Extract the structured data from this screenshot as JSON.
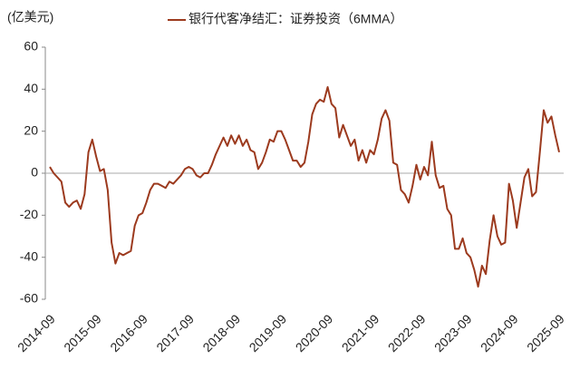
{
  "chart_data": {
    "type": "line",
    "y_label": "(亿美元)",
    "categories": [
      "2014-09",
      null,
      null,
      null,
      null,
      null,
      null,
      null,
      null,
      null,
      null,
      null,
      "2015-09",
      null,
      null,
      null,
      null,
      null,
      null,
      null,
      null,
      null,
      null,
      null,
      "2016-09",
      null,
      null,
      null,
      null,
      null,
      null,
      null,
      null,
      null,
      null,
      null,
      "2017-09",
      null,
      null,
      null,
      null,
      null,
      null,
      null,
      null,
      null,
      null,
      null,
      "2018-09",
      null,
      null,
      null,
      null,
      null,
      null,
      null,
      null,
      null,
      null,
      null,
      "2019-09",
      null,
      null,
      null,
      null,
      null,
      null,
      null,
      null,
      null,
      null,
      null,
      "2020-09",
      null,
      null,
      null,
      null,
      null,
      null,
      null,
      null,
      null,
      null,
      null,
      "2021-09",
      null,
      null,
      null,
      null,
      null,
      null,
      null,
      null,
      null,
      null,
      null,
      "2022-09",
      null,
      null,
      null,
      null,
      null,
      null,
      null,
      null,
      null,
      null,
      null,
      "2023-09",
      null,
      null,
      null,
      null,
      null,
      null,
      null,
      null,
      null,
      null,
      null,
      "2024-09",
      null,
      null,
      null,
      null,
      null,
      null,
      null,
      null,
      null,
      null,
      null,
      "2025-09"
    ],
    "series": [
      {
        "name": "银行代客净结汇：证券投资（6MMA）",
        "color": "#9c3a1e",
        "values": [
          3,
          0,
          -2,
          -4,
          -14,
          -16,
          -14,
          -13,
          -17,
          -10,
          10,
          16,
          8,
          1,
          2,
          -8,
          -33,
          -43,
          -38,
          -39,
          -38,
          -37,
          -25,
          -20,
          -19,
          -14,
          -8,
          -5,
          -5,
          -6,
          -7,
          -4,
          -5,
          -3,
          -1,
          2,
          3,
          2,
          -1,
          -2,
          0,
          0,
          4,
          9,
          13,
          17,
          13,
          18,
          14,
          18,
          13,
          16,
          11,
          10,
          2,
          5,
          10,
          16,
          15,
          20,
          20,
          16,
          11,
          6,
          6,
          3,
          5,
          15,
          28,
          33,
          35,
          34,
          41,
          33,
          31,
          17,
          23,
          18,
          13,
          16,
          6,
          11,
          5,
          11,
          9,
          16,
          26,
          30,
          25,
          5,
          4,
          -8,
          -10,
          -14,
          -6,
          4,
          -3,
          3,
          -1,
          15,
          -1,
          -7,
          -6,
          -17,
          -20,
          -36,
          -36,
          -31,
          -38,
          -40,
          -46,
          -54,
          -44,
          -48,
          -32,
          -20,
          -30,
          -34,
          -33,
          -5,
          -13,
          -26,
          -14,
          -2,
          2,
          -11,
          -9,
          10,
          30,
          24,
          27,
          18,
          10
        ]
      }
    ],
    "ylim": [
      -60,
      60
    ],
    "yticks": [
      -60,
      -40,
      -20,
      0,
      20,
      40,
      60
    ],
    "grid": false
  }
}
